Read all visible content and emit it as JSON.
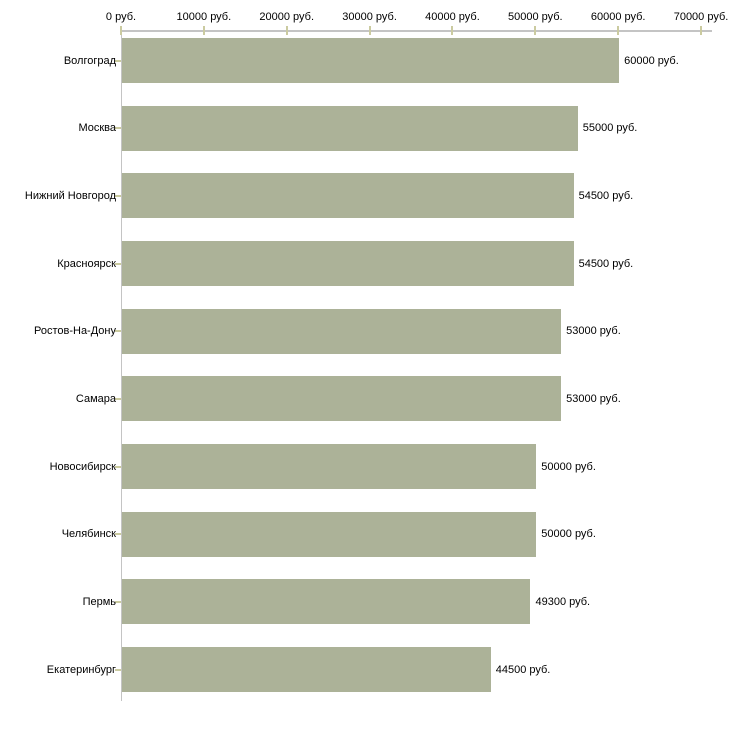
{
  "chart_data": {
    "type": "bar",
    "orientation": "horizontal",
    "title": "",
    "xlabel": "",
    "ylabel": "",
    "categories": [
      "Волгоград",
      "Москва",
      "Нижний Новгород",
      "Красноярск",
      "Ростов-На-Дону",
      "Самара",
      "Новосибирск",
      "Челябинск",
      "Пермь",
      "Екатеринбург"
    ],
    "values": [
      60000,
      55000,
      54500,
      54500,
      53000,
      53000,
      50000,
      50000,
      49300,
      44500
    ],
    "value_labels": [
      "60000 руб.",
      "55000 руб.",
      "54500 руб.",
      "54500 руб.",
      "53000 руб.",
      "53000 руб.",
      "50000 руб.",
      "50000 руб.",
      "49300 руб.",
      "44500 руб."
    ],
    "x_axis": {
      "min": 0,
      "max": 70000,
      "tick_interval": 10000,
      "tick_labels": [
        "0 руб.",
        "10000 руб.",
        "20000 руб.",
        "30000 руб.",
        "40000 руб.",
        "50000 руб.",
        "60000 руб.",
        "70000 руб."
      ],
      "position": "top"
    },
    "legend": "none",
    "grid": "off",
    "colors": {
      "bar": "#acb298",
      "axis_line": "#c4c4c4",
      "tick": "#cbcba0",
      "text": "#000000",
      "background": "#ffffff"
    }
  }
}
